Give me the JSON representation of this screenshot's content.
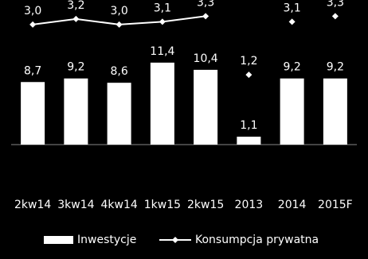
{
  "chart_data": {
    "type": "bar_line",
    "categories": [
      "2kw14",
      "3kw14",
      "4kw14",
      "1kw15",
      "2kw15",
      "2013",
      "2014",
      "2015F"
    ],
    "ylim": [
      0,
      20
    ],
    "y2lim": [
      -1.3,
      3.85
    ],
    "series": [
      {
        "name": "Inwestycje",
        "type": "bar",
        "color": "#ffffff",
        "values": [
          8.7,
          9.2,
          8.6,
          11.4,
          10.4,
          1.1,
          9.2,
          9.2
        ],
        "value_labels": [
          "8,7",
          "9,2",
          "8,6",
          "11,4",
          "10,4",
          "1,1",
          "9,2",
          "9,2"
        ]
      },
      {
        "name": "Konsumpcja prywatna",
        "type": "line",
        "line": true,
        "axis": "y2",
        "color": "#ffffff",
        "values": [
          3.0,
          3.2,
          3.0,
          3.1,
          3.3,
          null,
          null,
          null
        ],
        "value_labels": [
          "3,0",
          "3,2",
          "3,0",
          "3,1",
          "3,3",
          null,
          null,
          null
        ]
      },
      {
        "type": "line",
        "line": false,
        "axis": "y2",
        "color": "#ffffff",
        "values": [
          null,
          null,
          null,
          null,
          null,
          1.2,
          3.1,
          3.3
        ],
        "value_labels": [
          null,
          null,
          null,
          null,
          null,
          "1,2",
          "3,1",
          "3,3"
        ]
      }
    ]
  }
}
